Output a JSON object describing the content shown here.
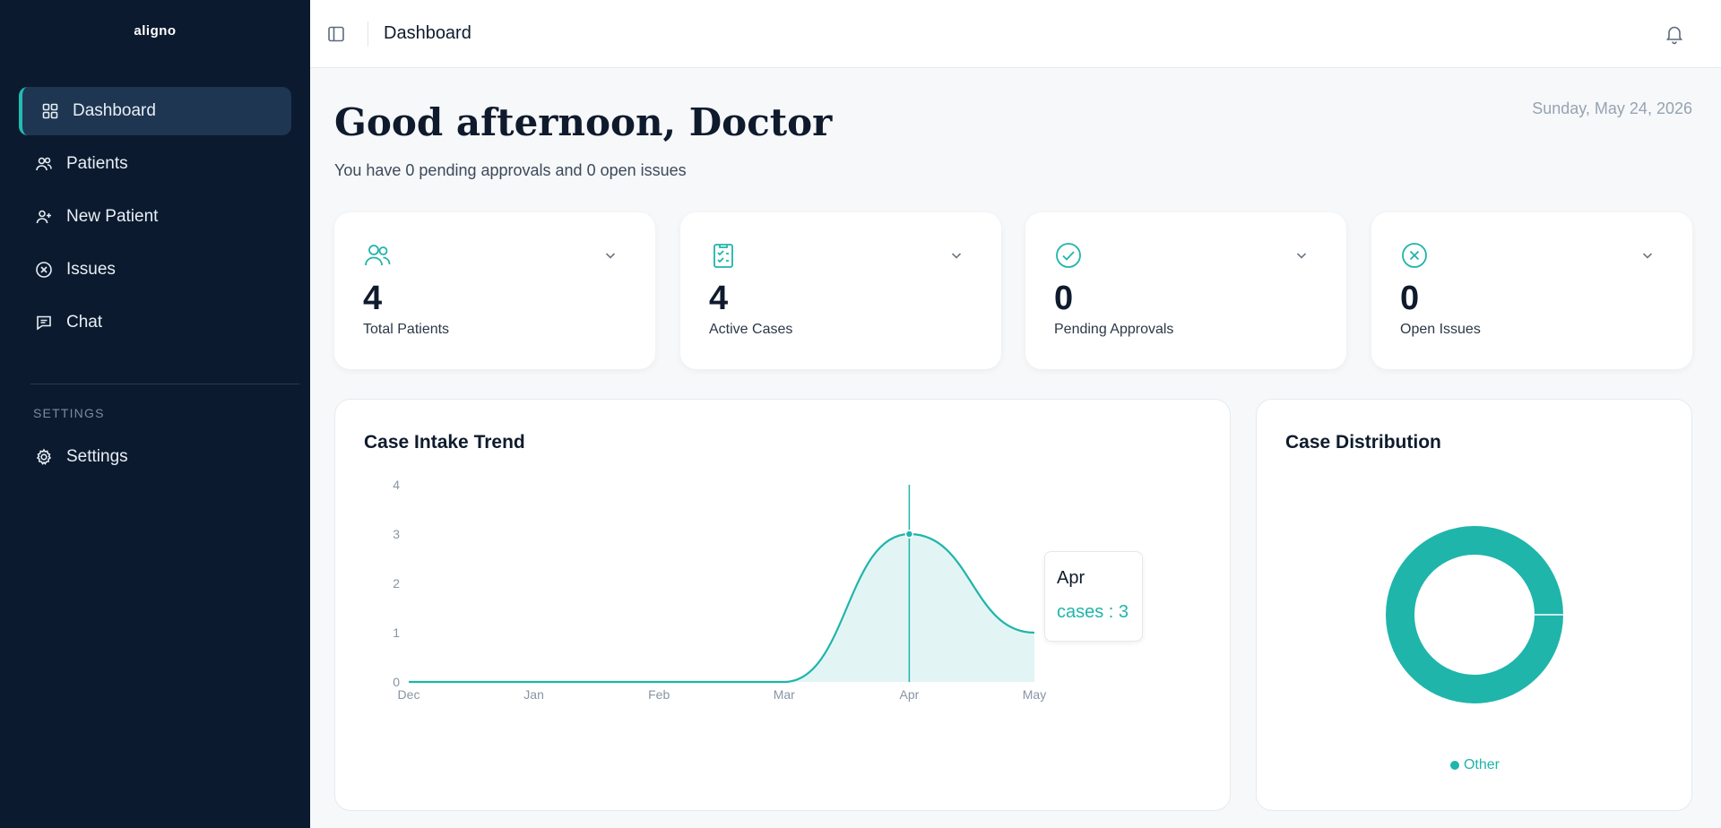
{
  "app": {
    "logo_text": "aligno"
  },
  "sidebar": {
    "items": [
      {
        "label": "Dashboard",
        "icon": "grid-icon",
        "active": true
      },
      {
        "label": "Patients",
        "icon": "users-icon"
      },
      {
        "label": "New Patient",
        "icon": "user-plus-icon"
      },
      {
        "label": "Issues",
        "icon": "x-circle-icon"
      },
      {
        "label": "Chat",
        "icon": "message-icon"
      }
    ],
    "settings_section_label": "SETTINGS",
    "settings_item": {
      "label": "Settings",
      "icon": "gear-icon"
    }
  },
  "topbar": {
    "title": "Dashboard",
    "toggle_icon": "sidebar-toggle-icon",
    "bell_icon": "bell-icon"
  },
  "header": {
    "greeting": "Good afternoon, Doctor",
    "subtitle": "You have 0 pending approvals and 0 open issues",
    "date": "Sunday, May 24, 2026"
  },
  "stats": [
    {
      "value": "4",
      "label": "Total Patients",
      "icon": "users-icon"
    },
    {
      "value": "4",
      "label": "Active Cases",
      "icon": "clipboard-check-icon"
    },
    {
      "value": "0",
      "label": "Pending Approvals",
      "icon": "check-circle-icon"
    },
    {
      "value": "0",
      "label": "Open Issues",
      "icon": "x-circle-icon"
    }
  ],
  "colors": {
    "accent": "#1fb5aa",
    "sidebar_bg": "#0b1a2e",
    "active_bg": "#1e3651"
  },
  "trend": {
    "title": "Case Intake Trend",
    "tooltip": {
      "label": "Apr",
      "value_text": "cases : 3"
    }
  },
  "distribution": {
    "title": "Case Distribution",
    "legend": "Other"
  },
  "chart_data": [
    {
      "type": "area",
      "title": "Case Intake Trend",
      "categories": [
        "Dec",
        "Jan",
        "Feb",
        "Mar",
        "Apr",
        "May"
      ],
      "series": [
        {
          "name": "cases",
          "values": [
            0,
            0,
            0,
            0,
            3,
            1
          ]
        }
      ],
      "yticks": [
        0,
        1,
        2,
        3,
        4
      ],
      "ylim": [
        0,
        4
      ],
      "grid": false,
      "highlight": {
        "category": "Apr",
        "value": 3
      }
    },
    {
      "type": "pie",
      "title": "Case Distribution",
      "donut": true,
      "slices": [
        {
          "name": "Other",
          "value": 1
        }
      ],
      "legend": "bottom"
    }
  ]
}
